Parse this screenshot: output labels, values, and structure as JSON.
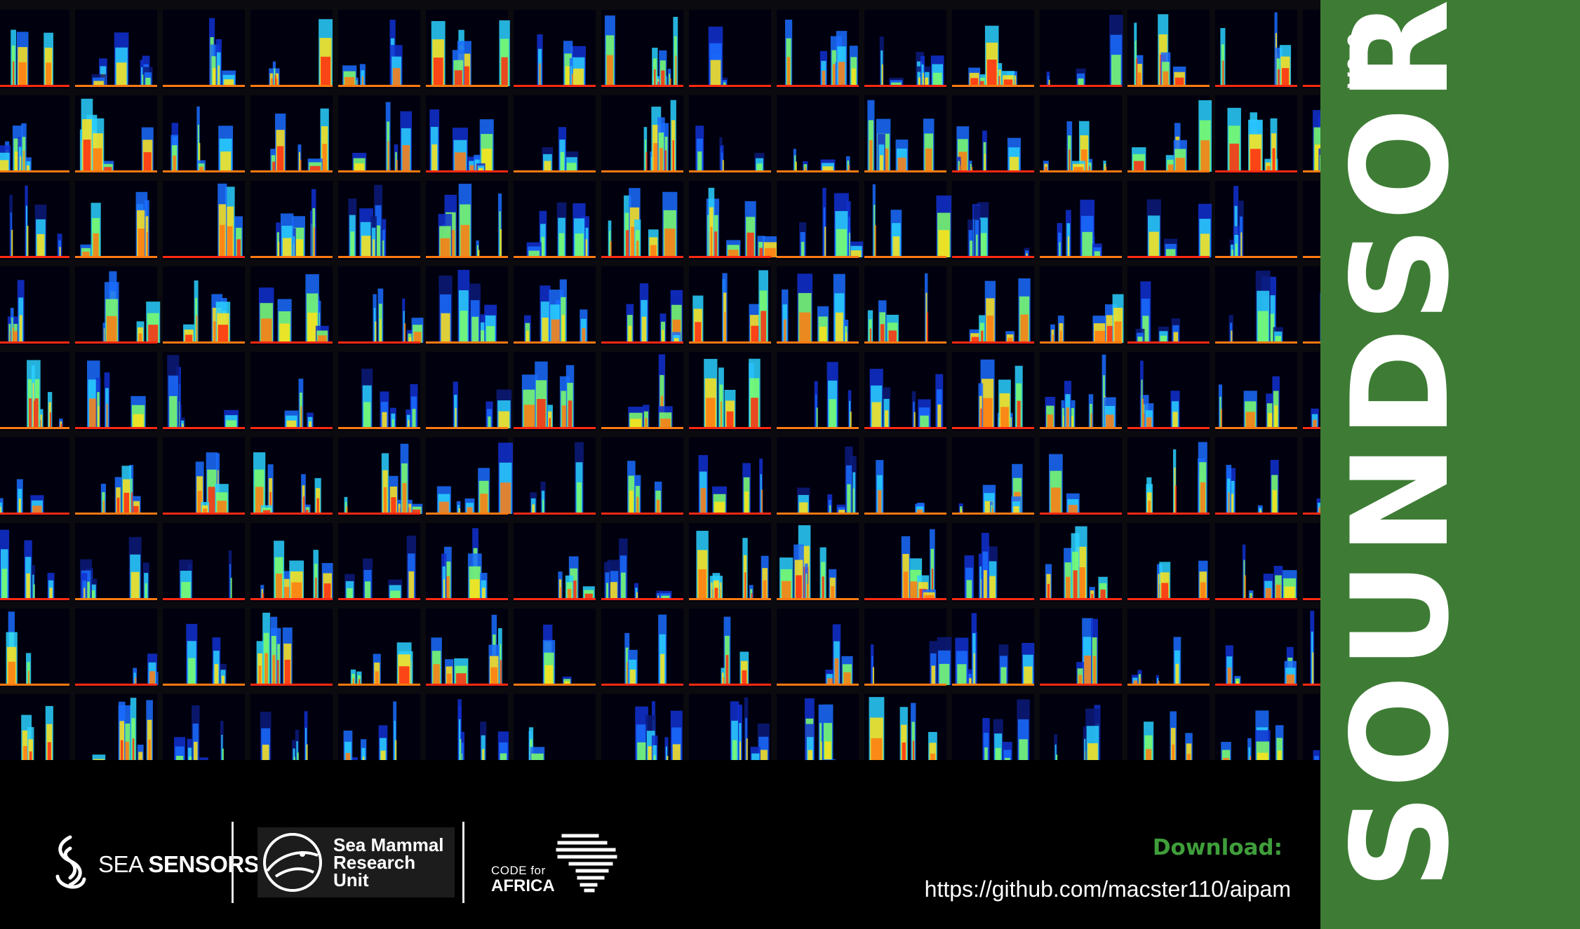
{
  "app": {
    "title": "SOUNDSORT",
    "version": "V0.9"
  },
  "grid": {
    "rows": 9,
    "cols": 15,
    "palette": [
      "#0b1a7a",
      "#1030d0",
      "#1a6cff",
      "#2ad0ff",
      "#7cff6a",
      "#ffe31a",
      "#ff7a10",
      "#ff2a10",
      "#a00000"
    ]
  },
  "footer": {
    "logos": {
      "sea_sensors": {
        "light": "SEA",
        "bold": "SENSORS"
      },
      "smru": "Sea Mammal\nResearch\nUnit",
      "cfa_top": "CODE for",
      "cfa_bottom": "AFRICA"
    },
    "download_label": "Download:",
    "download_url": "https://github.com/macster110/aipam"
  },
  "colors": {
    "sidebar": "#3e7c35",
    "accent": "#3f9e3a"
  }
}
